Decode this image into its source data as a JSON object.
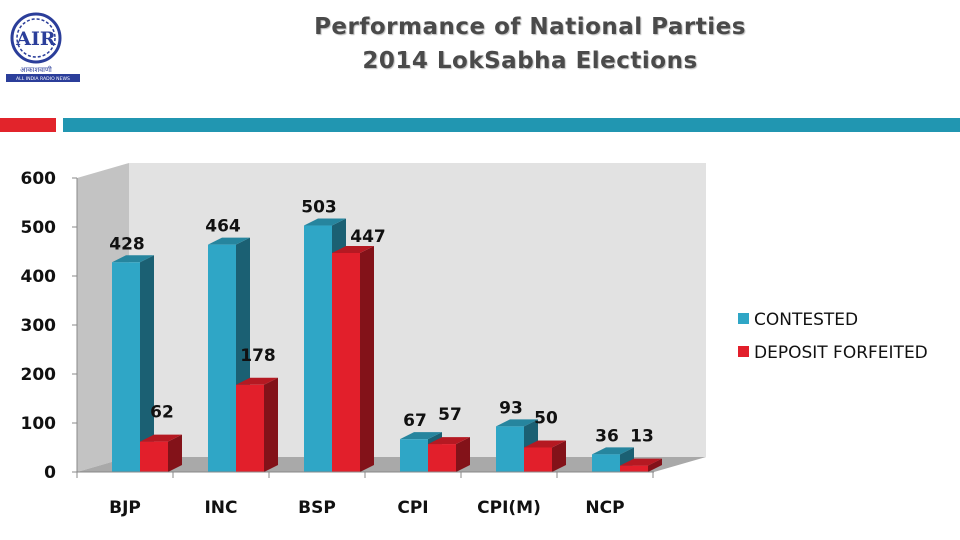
{
  "title": {
    "line1": "Performance of National Parties",
    "line2": "2014 LokSabha Elections"
  },
  "logo": {
    "caption": "ALL INDIA RADIO NEWS",
    "hindi": "आकाशवाणी",
    "letters": "AIR"
  },
  "colors": {
    "contested": "#2fa6c6",
    "forfeited": "#e21f2b",
    "band_red": "#e2242b",
    "band_teal": "#2196b1"
  },
  "chart_data": {
    "type": "bar",
    "title": "Performance of National Parties 2014 LokSabha Elections",
    "categories": [
      "BJP",
      "INC",
      "BSP",
      "CPI",
      "CPI(M)",
      "NCP"
    ],
    "series": [
      {
        "name": "CONTESTED",
        "values": [
          428,
          464,
          503,
          67,
          93,
          36
        ]
      },
      {
        "name": "DEPOSIT FORFEITED",
        "values": [
          62,
          178,
          447,
          57,
          50,
          13
        ]
      }
    ],
    "ylim": [
      0,
      600
    ],
    "yticks": [
      "0",
      "100",
      "200",
      "300",
      "400",
      "500",
      "600"
    ],
    "grid": false,
    "legend": "right"
  }
}
